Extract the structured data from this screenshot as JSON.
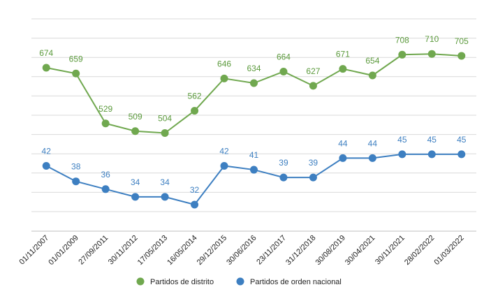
{
  "chart_data": {
    "type": "line",
    "title": "",
    "xlabel": "",
    "ylabel": "",
    "categories": [
      "01/11/2007",
      "01/01/2009",
      "27/09/2011",
      "30/11/2012",
      "17/05/2013",
      "16/05/2014",
      "29/12/2015",
      "30/06/2016",
      "23/11/2017",
      "31/12/2018",
      "30/08/2019",
      "30/04/2021",
      "30/11/2021",
      "28/02/2022",
      "01/03/2022"
    ],
    "series": [
      {
        "name": "Partidos de distrito",
        "color": "#70a84f",
        "label_color": "#5b9a3c",
        "values": [
          674,
          659,
          529,
          509,
          504,
          562,
          646,
          634,
          664,
          627,
          671,
          654,
          708,
          710,
          705
        ]
      },
      {
        "name": "Partidos de orden nacional",
        "color": "#3d7fc1",
        "label_color": "#3d7fc1",
        "values": [
          42,
          38,
          36,
          34,
          34,
          32,
          42,
          41,
          39,
          39,
          44,
          44,
          45,
          45,
          45
        ]
      }
    ],
    "grid": true,
    "legend_position": "bottom"
  }
}
